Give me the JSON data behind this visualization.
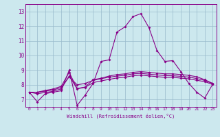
{
  "xlabel": "Windchill (Refroidissement éolien,°C)",
  "bg_color": "#cce8ee",
  "line_color": "#880088",
  "grid_color": "#99bbcc",
  "x_ticks": [
    0,
    1,
    2,
    3,
    4,
    5,
    6,
    7,
    8,
    9,
    10,
    11,
    12,
    13,
    14,
    15,
    16,
    17,
    18,
    19,
    20,
    21,
    22,
    23
  ],
  "y_ticks": [
    7,
    8,
    9,
    10,
    11,
    12,
    13
  ],
  "ylim": [
    6.5,
    13.5
  ],
  "xlim": [
    -0.5,
    23.5
  ],
  "series": [
    [
      7.5,
      6.85,
      7.4,
      7.5,
      7.6,
      9.0,
      6.6,
      7.3,
      8.1,
      9.6,
      9.7,
      11.6,
      11.95,
      12.65,
      12.85,
      11.9,
      10.35,
      9.6,
      9.65,
      8.9,
      8.1,
      7.5,
      7.1,
      8.05
    ],
    [
      7.5,
      7.5,
      7.62,
      7.72,
      7.9,
      8.85,
      7.75,
      7.85,
      8.35,
      8.45,
      8.6,
      8.7,
      8.75,
      8.85,
      8.9,
      8.85,
      8.8,
      8.75,
      8.75,
      8.7,
      8.65,
      8.55,
      8.35,
      8.1
    ],
    [
      7.5,
      7.5,
      7.57,
      7.65,
      7.82,
      8.55,
      8.0,
      8.1,
      8.3,
      8.42,
      8.52,
      8.6,
      8.65,
      8.75,
      8.78,
      8.73,
      8.68,
      8.63,
      8.62,
      8.58,
      8.53,
      8.43,
      8.3,
      8.08
    ],
    [
      7.5,
      7.4,
      7.48,
      7.56,
      7.73,
      8.6,
      7.73,
      7.83,
      8.15,
      8.27,
      8.37,
      8.47,
      8.52,
      8.62,
      8.66,
      8.61,
      8.56,
      8.51,
      8.51,
      8.46,
      8.41,
      8.31,
      8.22,
      8.02
    ]
  ]
}
